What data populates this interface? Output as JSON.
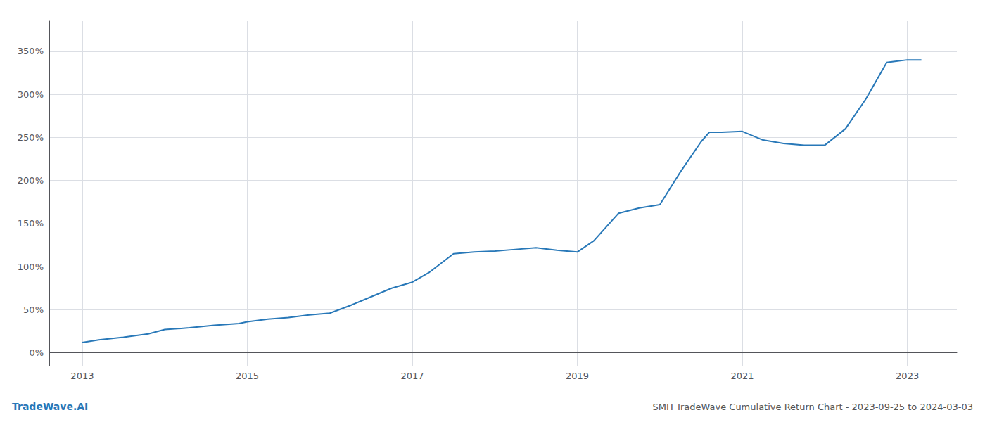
{
  "chart_data": {
    "type": "line",
    "title": "SMH TradeWave Cumulative Return Chart - 2023-09-25 to 2024-03-03",
    "annotations": [
      "TradeWave.AI"
    ],
    "x": [
      2013.0,
      2013.2,
      2013.5,
      2013.8,
      2014.0,
      2014.3,
      2014.6,
      2014.9,
      2015.0,
      2015.25,
      2015.5,
      2015.75,
      2016.0,
      2016.25,
      2016.5,
      2016.75,
      2017.0,
      2017.2,
      2017.5,
      2017.75,
      2018.0,
      2018.25,
      2018.5,
      2018.75,
      2019.0,
      2019.2,
      2019.5,
      2019.75,
      2020.0,
      2020.25,
      2020.5,
      2020.6,
      2020.75,
      2021.0,
      2021.25,
      2021.5,
      2021.75,
      2022.0,
      2022.25,
      2022.5,
      2022.75,
      2023.0,
      2023.17
    ],
    "values": [
      12,
      15,
      18,
      22,
      27,
      29,
      32,
      34,
      36,
      39,
      41,
      44,
      46,
      55,
      65,
      75,
      82,
      93,
      115,
      117,
      118,
      120,
      122,
      119,
      117,
      130,
      162,
      168,
      172,
      210,
      245,
      256,
      256,
      257,
      247,
      243,
      241,
      241,
      260,
      295,
      337,
      340,
      340
    ],
    "color": "#2878b8",
    "xlim": [
      2012.6,
      2023.6
    ],
    "xticks": [
      2013,
      2015,
      2017,
      2019,
      2021,
      2023
    ],
    "ylim": [
      -15,
      385
    ],
    "yticks": [
      {
        "value": 0,
        "label": "0%"
      },
      {
        "value": 50,
        "label": "50%"
      },
      {
        "value": 100,
        "label": "100%"
      },
      {
        "value": 150,
        "label": "150%"
      },
      {
        "value": 200,
        "label": "200%"
      },
      {
        "value": 250,
        "label": "250%"
      },
      {
        "value": 300,
        "label": "300%"
      },
      {
        "value": 350,
        "label": "350%"
      }
    ],
    "grid": true
  }
}
